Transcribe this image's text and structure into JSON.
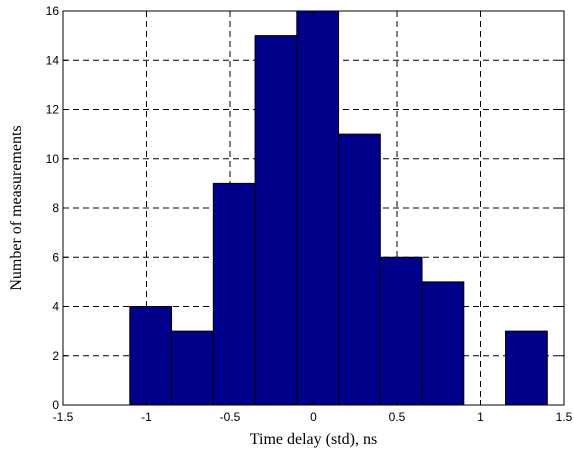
{
  "chart_data": {
    "type": "bar",
    "title": "",
    "xlabel": "Time delay (std), ns",
    "ylabel": "Number of measurements",
    "xlim": [
      -1.5,
      1.5
    ],
    "ylim": [
      0,
      16
    ],
    "xticks": [
      -1.5,
      -1,
      -0.5,
      0,
      0.5,
      1,
      1.5
    ],
    "xtick_labels": [
      "-1.5",
      "-1",
      "-0.5",
      "0",
      "0.5",
      "1",
      "1.5"
    ],
    "yticks": [
      0,
      2,
      4,
      6,
      8,
      10,
      12,
      14,
      16
    ],
    "ytick_labels": [
      "0",
      "2",
      "4",
      "6",
      "8",
      "10",
      "12",
      "14",
      "16"
    ],
    "grid": true,
    "grid_style": "dashed",
    "bin_width": 0.25,
    "bin_centers": [
      -0.975,
      -0.725,
      -0.475,
      -0.225,
      0.025,
      0.275,
      0.525,
      0.775,
      1.025,
      1.275
    ],
    "values": [
      4,
      3,
      9,
      15,
      16,
      11,
      6,
      5,
      0,
      3
    ],
    "bar_color": "#00008B",
    "edge_color": "#000000"
  }
}
